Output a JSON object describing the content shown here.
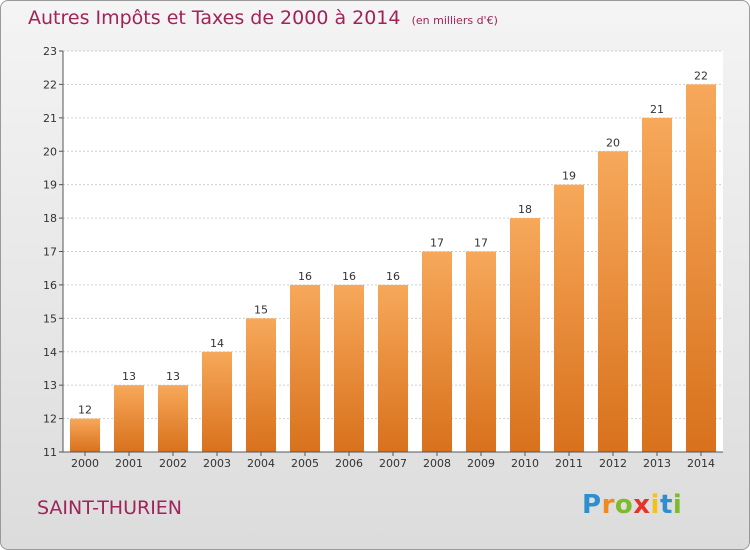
{
  "chart_data": {
    "type": "bar",
    "title": "Autres Impôts et Taxes de 2000 à 2014",
    "subtitle": "(en milliers d'€)",
    "categories": [
      "2000",
      "2001",
      "2002",
      "2003",
      "2004",
      "2005",
      "2006",
      "2007",
      "2008",
      "2009",
      "2010",
      "2011",
      "2012",
      "2013",
      "2014"
    ],
    "values": [
      12,
      13,
      13,
      14,
      15,
      16,
      16,
      16,
      17,
      17,
      18,
      19,
      20,
      21,
      22
    ],
    "ylim": [
      11,
      23
    ],
    "yticks": [
      "11",
      "12",
      "13",
      "14",
      "15",
      "16",
      "17",
      "18",
      "19",
      "20",
      "21",
      "22",
      "23"
    ],
    "grid": true,
    "bar_color": "#f0882c"
  },
  "footer": {
    "commune": "SAINT-THURIEN",
    "brand_letters": [
      {
        "ch": "P",
        "color": "#2d8fd0"
      },
      {
        "ch": "r",
        "color": "#f08a1c"
      },
      {
        "ch": "o",
        "color": "#7dbb2c"
      },
      {
        "ch": "x",
        "color": "#e8312a"
      },
      {
        "ch": "i",
        "color": "#f6c01a"
      },
      {
        "ch": "t",
        "color": "#2d8fd0"
      },
      {
        "ch": "i",
        "color": "#7dbb2c"
      }
    ]
  }
}
